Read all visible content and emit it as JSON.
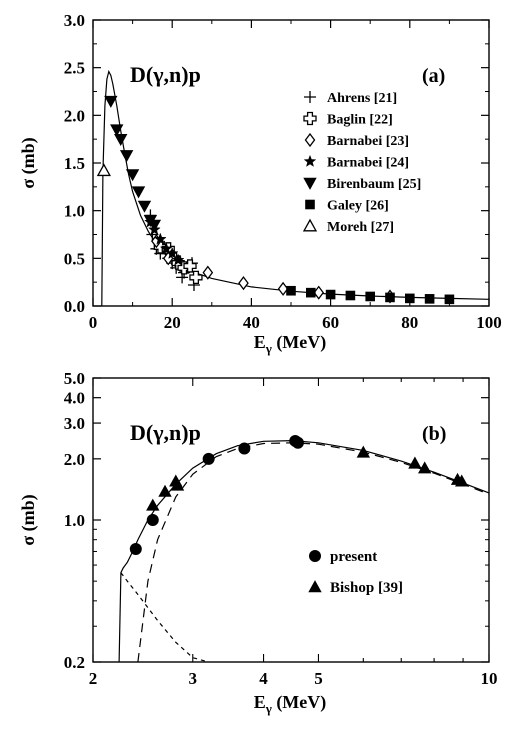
{
  "chart_data": [
    {
      "type": "scatter",
      "panel_label": "(a)",
      "title": "D(γ,n)p",
      "xlabel": "E",
      "xlabel_sub": "γ",
      "xlabel_unit": " (MeV)",
      "ylabel": "σ (mb)",
      "xlim": [
        0,
        100
      ],
      "ylim": [
        0,
        3.0
      ],
      "xticks": [
        0,
        20,
        40,
        60,
        80,
        100
      ],
      "yticks": [
        "0.0",
        "0.5",
        "1.0",
        "1.5",
        "2.0",
        "2.5",
        "3.0"
      ],
      "legend_position": "right",
      "curve": {
        "x": [
          2.22,
          2.5,
          3,
          3.5,
          4,
          4.5,
          5,
          6,
          7,
          8,
          9,
          10,
          12,
          14,
          16,
          18,
          20,
          25,
          30,
          40,
          50,
          60,
          70,
          80,
          90,
          100
        ],
        "y": [
          0,
          1.4,
          2.1,
          2.38,
          2.46,
          2.42,
          2.33,
          2.1,
          1.84,
          1.6,
          1.38,
          1.2,
          0.95,
          0.78,
          0.65,
          0.55,
          0.48,
          0.36,
          0.29,
          0.2,
          0.155,
          0.125,
          0.105,
          0.09,
          0.08,
          0.07
        ]
      },
      "series": [
        {
          "name": "Ahrens [21]",
          "marker": "plus",
          "x": [
            15,
            16,
            17,
            18,
            19,
            20,
            21,
            22,
            23,
            24,
            25,
            25.5,
            14.5,
            18.5,
            22.5
          ],
          "y": [
            0.75,
            0.6,
            0.55,
            0.62,
            0.5,
            0.45,
            0.4,
            0.42,
            0.35,
            0.4,
            0.45,
            0.22,
            0.95,
            0.55,
            0.3
          ]
        },
        {
          "name": "Baglin [22]",
          "marker": "open-cross",
          "x": [
            17,
            19,
            20.5,
            21.5,
            23,
            24.5,
            26
          ],
          "y": [
            0.62,
            0.6,
            0.5,
            0.45,
            0.4,
            0.42,
            0.3
          ]
        },
        {
          "name": "Barnabei  [23]",
          "marker": "open-diamond",
          "x": [
            16,
            19,
            29,
            38,
            48,
            57,
            75
          ],
          "y": [
            0.68,
            0.5,
            0.35,
            0.24,
            0.18,
            0.14,
            0.1
          ]
        },
        {
          "name": "Barnabei [24]",
          "marker": "star",
          "x": [
            14.5,
            15.5,
            17,
            18.5,
            20,
            21.5
          ],
          "y": [
            0.88,
            0.8,
            0.7,
            0.6,
            0.55,
            0.48
          ]
        },
        {
          "name": "Birenbaum [25]",
          "marker": "filled-triangle-down",
          "x": [
            4.5,
            6,
            7,
            8.5,
            10,
            11.5,
            13,
            14.5,
            15.5
          ],
          "y": [
            2.15,
            1.85,
            1.75,
            1.58,
            1.38,
            1.2,
            1.05,
            0.9,
            0.85
          ]
        },
        {
          "name": "Galey [26]",
          "marker": "filled-square",
          "x": [
            50,
            55,
            60,
            65,
            70,
            75,
            80,
            85,
            90
          ],
          "y": [
            0.16,
            0.14,
            0.12,
            0.11,
            0.1,
            0.09,
            0.08,
            0.075,
            0.07
          ]
        },
        {
          "name": "Moreh [27]",
          "marker": "open-triangle-up",
          "x": [
            2.75
          ],
          "y": [
            1.42
          ]
        }
      ]
    },
    {
      "type": "scatter",
      "panel_label": "(b)",
      "title": "D(γ,n)p",
      "xlabel": "E",
      "xlabel_sub": "γ",
      "xlabel_unit": " (MeV)",
      "ylabel": "σ (mb)",
      "xscale": "log",
      "yscale": "log",
      "xlim": [
        2,
        10
      ],
      "ylim": [
        0.2,
        5.0
      ],
      "xticks": [
        2,
        3,
        4,
        5,
        10
      ],
      "yticks": [
        "0.2",
        "1.0",
        "2.0",
        "3.0",
        "4.0",
        "5.0"
      ],
      "legend_position": "center",
      "curves": [
        {
          "style": "solid",
          "x": [
            2.224,
            2.24,
            2.26,
            2.3,
            2.35,
            2.4,
            2.5,
            2.6,
            2.8,
            3,
            3.3,
            3.6,
            4,
            4.5,
            5,
            6,
            7,
            8,
            9,
            10
          ],
          "y": [
            0.2,
            0.55,
            0.58,
            0.62,
            0.7,
            0.8,
            1.0,
            1.18,
            1.5,
            1.8,
            2.12,
            2.32,
            2.44,
            2.46,
            2.4,
            2.2,
            1.95,
            1.72,
            1.52,
            1.36
          ]
        },
        {
          "style": "dashed",
          "x": [
            2.4,
            2.5,
            2.6,
            2.8,
            3,
            3.3,
            3.6,
            4,
            4.5,
            5,
            6,
            7,
            8,
            9,
            10
          ],
          "y": [
            0.2,
            0.5,
            0.8,
            1.3,
            1.68,
            2.05,
            2.25,
            2.38,
            2.4,
            2.36,
            2.16,
            1.92,
            1.7,
            1.5,
            1.34
          ]
        },
        {
          "style": "dotted",
          "x": [
            2.24,
            2.3,
            2.4,
            2.5,
            2.6,
            2.8,
            3.0,
            3.2
          ],
          "y": [
            0.55,
            0.5,
            0.43,
            0.37,
            0.32,
            0.25,
            0.21,
            0.2
          ]
        }
      ],
      "series": [
        {
          "name": "present",
          "marker": "filled-circle",
          "x": [
            2.38,
            2.55,
            3.2,
            3.7,
            4.55,
            4.6
          ],
          "y": [
            0.72,
            1.0,
            2.0,
            2.25,
            2.45,
            2.4
          ]
        },
        {
          "name": "Bishop [39]",
          "marker": "filled-triangle-up",
          "x": [
            2.55,
            2.68,
            2.8,
            2.82,
            6.0,
            7.4,
            7.7,
            8.8,
            8.95
          ],
          "y": [
            1.18,
            1.38,
            1.55,
            1.48,
            2.15,
            1.9,
            1.8,
            1.58,
            1.55
          ]
        }
      ]
    }
  ]
}
